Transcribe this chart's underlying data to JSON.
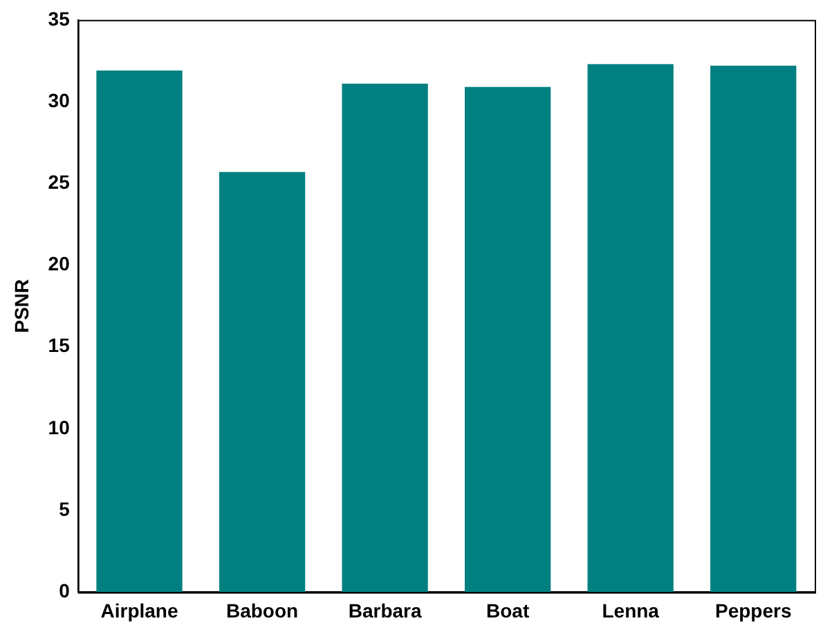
{
  "chart_data": {
    "type": "bar",
    "ylabel": "PSNR",
    "categories": [
      "Airplane",
      "Baboon",
      "Barbara",
      "Boat",
      "Lenna",
      "Peppers"
    ],
    "values": [
      31.9,
      25.7,
      31.1,
      30.9,
      32.3,
      32.2
    ],
    "color": "#008080",
    "ylim": [
      0,
      35
    ],
    "yticks": [
      0,
      5,
      10,
      15,
      20,
      25,
      30,
      35
    ],
    "grid": false
  }
}
